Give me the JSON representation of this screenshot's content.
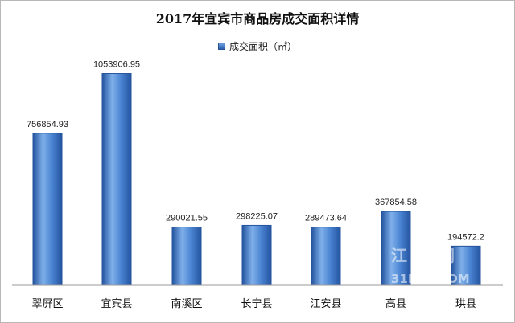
{
  "chart_data": {
    "type": "bar",
    "title": "2017年宜宾市商品房成交面积详情",
    "series": [
      {
        "name": "成交面积（㎡）",
        "values": [
          756854.93,
          1053906.95,
          290021.55,
          298225.07,
          289473.64,
          367854.58,
          194572.2
        ],
        "labels": [
          "756854.93",
          "1053906.95",
          "290021.55",
          "298225.07",
          "289473.64",
          "367854.58",
          "194572.2"
        ]
      }
    ],
    "categories": [
      "翠屏区",
      "宜宾县",
      "南溪区",
      "长宁县",
      "江安县",
      "高县",
      "珙县"
    ],
    "ylim": [
      0,
      1200000
    ],
    "grid": false,
    "legend_position": "top",
    "colors": {
      "bar": "#3a72c4",
      "bar_light": "#7fb0ea",
      "bar_dark": "#24549f"
    },
    "watermark": "江 网 31HO COM"
  }
}
